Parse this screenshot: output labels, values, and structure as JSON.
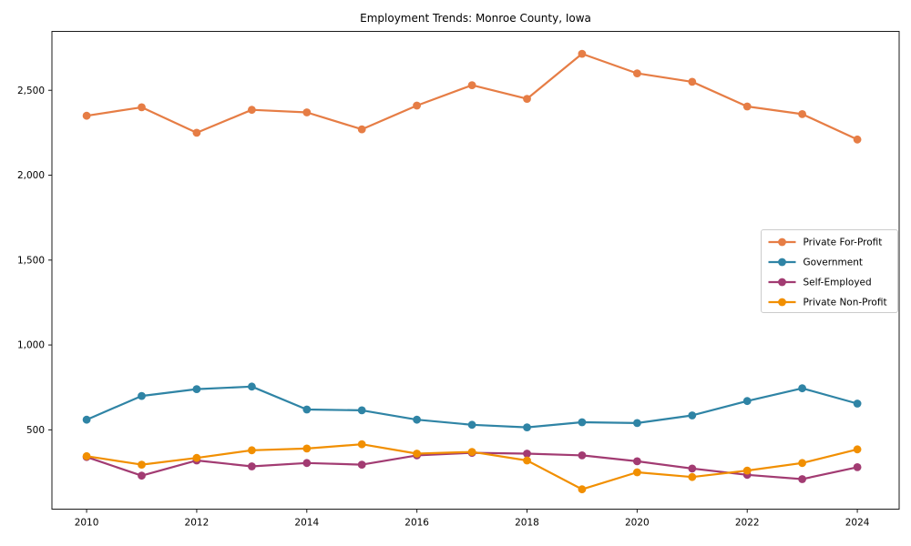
{
  "window": {
    "background": "#ffffff",
    "text_color": "#000000",
    "spine_color": "#1a1a1a",
    "legend_border_color": "#cccccc"
  },
  "chart_data": {
    "type": "line",
    "title": "Employment Trends: Monroe County, Iowa",
    "xlabel": "",
    "ylabel": "",
    "grid": false,
    "legend_position": "center-right",
    "x": [
      2010,
      2011,
      2012,
      2013,
      2014,
      2015,
      2016,
      2017,
      2018,
      2019,
      2020,
      2021,
      2022,
      2023,
      2024
    ],
    "xticks": [
      2010,
      2012,
      2014,
      2016,
      2018,
      2020,
      2022,
      2024
    ],
    "xtick_labels": [
      "2010",
      "2012",
      "2014",
      "2016",
      "2018",
      "2020",
      "2022",
      "2024"
    ],
    "yticks": [
      500,
      1000,
      1500,
      2000,
      2500
    ],
    "ytick_labels": [
      "500",
      "1,000",
      "1,500",
      "2,000",
      "2,500"
    ],
    "xlim": [
      2009.37,
      2024.76
    ],
    "ylim": [
      33,
      2847
    ],
    "series": [
      {
        "name": "Private For-Profit",
        "color": "#E67D45",
        "values": [
          2350,
          2400,
          2250,
          2385,
          2370,
          2270,
          2410,
          2530,
          2450,
          2715,
          2600,
          2550,
          2405,
          2360,
          2210
        ]
      },
      {
        "name": "Government",
        "color": "#2F84A5",
        "values": [
          560,
          700,
          740,
          755,
          620,
          615,
          560,
          530,
          515,
          545,
          540,
          585,
          670,
          745,
          655
        ]
      },
      {
        "name": "Self-Employed",
        "color": "#A23B72",
        "values": [
          340,
          230,
          320,
          285,
          305,
          295,
          350,
          365,
          360,
          350,
          315,
          272,
          235,
          210,
          280
        ]
      },
      {
        "name": "Private Non-Profit",
        "color": "#F18F01",
        "values": [
          345,
          295,
          335,
          380,
          390,
          415,
          360,
          370,
          320,
          150,
          250,
          222,
          260,
          305,
          385
        ]
      }
    ]
  }
}
